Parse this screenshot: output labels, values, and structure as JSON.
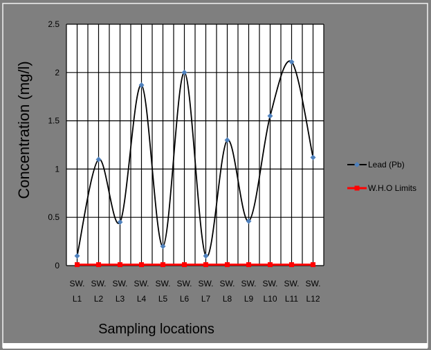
{
  "chart_data": {
    "type": "line",
    "categories": [
      [
        "SW.",
        "L1"
      ],
      [
        "SW.",
        "L2"
      ],
      [
        "SW.",
        "L3"
      ],
      [
        "SW.",
        "L4"
      ],
      [
        "SW.",
        "L5"
      ],
      [
        "SW.",
        "L6"
      ],
      [
        "SW.",
        "L7"
      ],
      [
        "SW.",
        "L8"
      ],
      [
        "SW.",
        "L9"
      ],
      [
        "SW.",
        "L10"
      ],
      [
        "SW.",
        "L11"
      ],
      [
        "SW.",
        "L12"
      ]
    ],
    "series": [
      {
        "name": "Lead (Pb)",
        "values": [
          0.1,
          1.1,
          0.45,
          1.87,
          0.2,
          2.0,
          0.1,
          1.3,
          0.46,
          1.55,
          2.11,
          1.12
        ],
        "line_color": "#000000",
        "marker_color": "#4f81bd",
        "marker": "diamond",
        "smooth": true
      },
      {
        "name": "W.H.O Limits",
        "values": [
          0.01,
          0.01,
          0.01,
          0.01,
          0.01,
          0.01,
          0.01,
          0.01,
          0.01,
          0.01,
          0.01,
          0.01
        ],
        "line_color": "#ff0000",
        "marker_color": "#ff0000",
        "marker": "square",
        "smooth": false
      }
    ],
    "xlabel": "Sampling locations",
    "ylabel": "Concentration (mg/l)",
    "ylim": [
      0,
      2.5
    ],
    "yticks": [
      "0",
      "0.5",
      "1",
      "1.5",
      "2",
      "2.5"
    ],
    "grid": true,
    "legend_position": "right"
  }
}
